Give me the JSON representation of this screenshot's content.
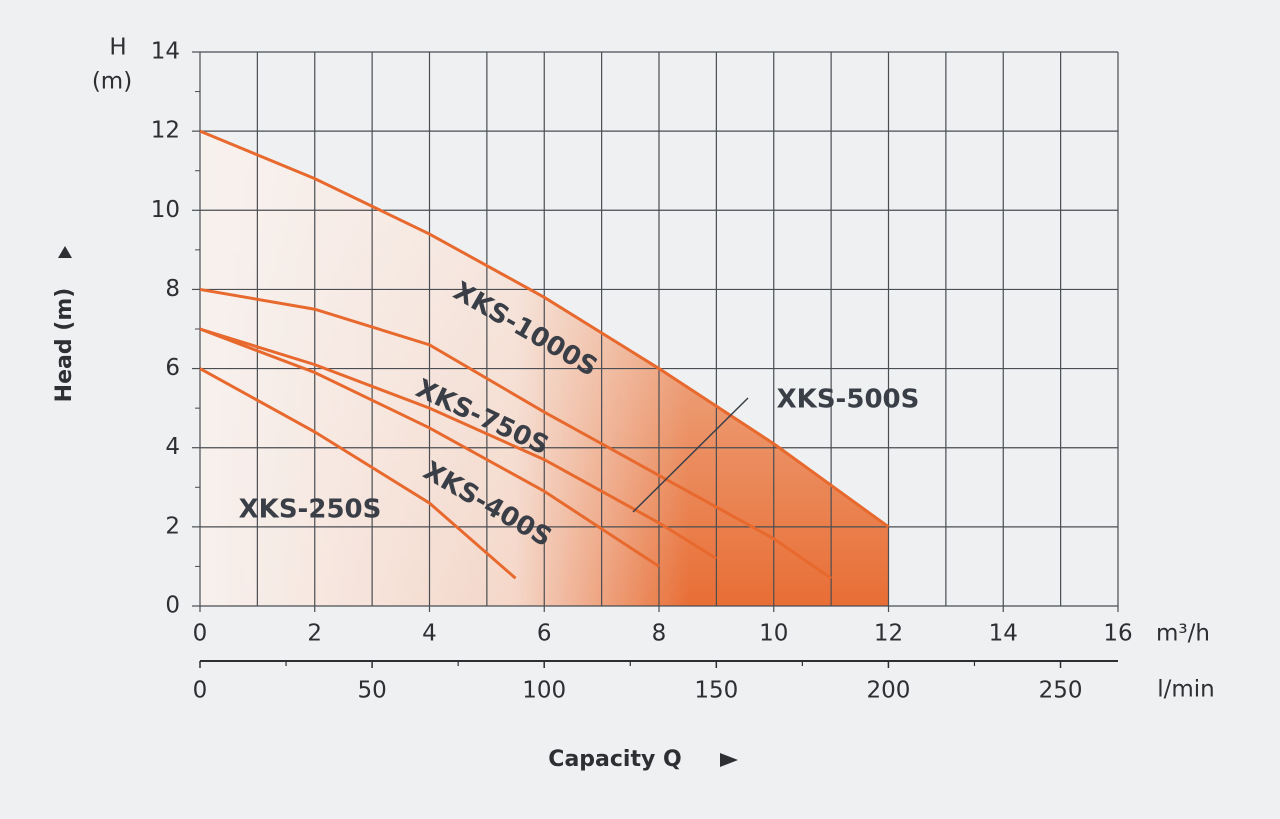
{
  "chart_data": {
    "type": "line",
    "y_label_top": "H",
    "y_unit_top": "(m)",
    "y_label": "Head (m)",
    "x_unit": "m³/h",
    "x2_unit": "l/min",
    "x_label": "Capacity Q",
    "xlim": [
      0,
      16
    ],
    "xticks": [
      0,
      2,
      4,
      6,
      8,
      10,
      12,
      14,
      16
    ],
    "xminorticks": [
      1,
      3,
      5,
      7,
      9,
      11,
      13,
      15
    ],
    "x2lim": [
      0,
      266.7
    ],
    "x2ticks": [
      0,
      50,
      100,
      150,
      200,
      250
    ],
    "x2minorticks": [
      25,
      75,
      125,
      175,
      225
    ],
    "ylim": [
      0,
      14
    ],
    "yticks": [
      0,
      2,
      4,
      6,
      8,
      10,
      12,
      14
    ],
    "grid": true,
    "series": [
      {
        "name": "XKS-1000S",
        "color": "#e8692e",
        "x": [
          0,
          2,
          4,
          6,
          8,
          10,
          12
        ],
        "values": [
          12,
          10.8,
          9.4,
          7.8,
          6.0,
          4.1,
          2.0
        ]
      },
      {
        "name": "XKS-750S",
        "color": "#e8692e",
        "x": [
          0,
          2,
          4,
          6,
          8,
          10,
          11
        ],
        "values": [
          8,
          7.5,
          6.6,
          4.9,
          3.3,
          1.7,
          0.7
        ]
      },
      {
        "name": "XKS-500S",
        "color": "#e8692e",
        "x": [
          0,
          2,
          4,
          6,
          8,
          9
        ],
        "values": [
          7,
          6.1,
          5.0,
          3.7,
          2.1,
          1.2
        ]
      },
      {
        "name": "XKS-400S",
        "color": "#e8692e",
        "x": [
          0,
          2,
          4,
          6,
          8
        ],
        "values": [
          7,
          5.9,
          4.5,
          2.9,
          1.0
        ]
      },
      {
        "name": "XKS-250S",
        "color": "#e8692e",
        "x": [
          0,
          2,
          4,
          5.5
        ],
        "values": [
          6,
          4.4,
          2.6,
          0.7
        ]
      }
    ]
  }
}
